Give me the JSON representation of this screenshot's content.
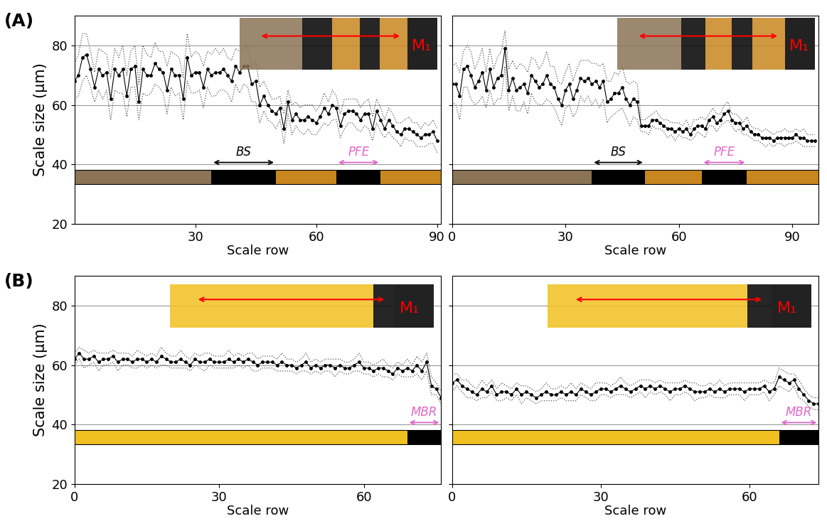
{
  "chart_data": [
    {
      "type": "line",
      "panel_label": "(A)",
      "inset_label": "M₁",
      "xlabel": "Scale row",
      "ylabel": "Scale size (µm)",
      "xlim": [
        0,
        91
      ],
      "xticks": [
        30,
        60,
        90
      ],
      "ylim": [
        20,
        90
      ],
      "yticks": [
        20,
        40,
        60,
        80
      ],
      "grid": true,
      "color": "#000000",
      "marker": "o",
      "line_style": "solid",
      "x": [
        0,
        1,
        2,
        3,
        4,
        5,
        6,
        7,
        8,
        9,
        10,
        11,
        12,
        13,
        14,
        15,
        16,
        17,
        18,
        19,
        20,
        21,
        22,
        23,
        24,
        25,
        26,
        27,
        28,
        29,
        30,
        31,
        32,
        33,
        34,
        35,
        36,
        37,
        38,
        39,
        40,
        41,
        42,
        43,
        44,
        45,
        46,
        47,
        48,
        49,
        50,
        51,
        52,
        53,
        54,
        55,
        56,
        57,
        58,
        59,
        60,
        61,
        62,
        63,
        64,
        65,
        66,
        67,
        68,
        69,
        70,
        71,
        72,
        73,
        74,
        75,
        76,
        77,
        78,
        79,
        80,
        81,
        82,
        83,
        84,
        85,
        86,
        87,
        88,
        89,
        90
      ],
      "values": [
        68,
        70,
        76,
        77,
        72,
        66,
        72,
        70,
        71,
        62,
        72,
        70,
        72,
        63,
        72,
        73,
        61,
        72,
        70,
        70,
        74,
        72,
        71,
        65,
        72,
        70,
        70,
        62,
        76,
        70,
        71,
        71,
        66,
        72,
        70,
        71,
        71,
        72,
        70,
        68,
        73,
        71,
        73,
        73,
        67,
        68,
        60,
        63,
        60,
        58,
        57,
        59,
        52,
        61,
        55,
        57,
        55,
        55,
        56,
        55,
        54,
        56,
        59,
        57,
        60,
        59,
        53,
        57,
        58,
        58,
        57,
        55,
        57,
        57,
        52,
        58,
        55,
        52,
        55,
        53,
        51,
        50,
        52,
        52,
        51,
        50,
        49,
        50,
        50,
        51,
        48
      ],
      "error": [
        6,
        7,
        8,
        7,
        6,
        5,
        7,
        8,
        6,
        7,
        7,
        6,
        8,
        7,
        6,
        7,
        6,
        8,
        7,
        6,
        7,
        6,
        7,
        8,
        6,
        7,
        6,
        7,
        8,
        6,
        7,
        6,
        7,
        6,
        7,
        8,
        6,
        7,
        6,
        7,
        6,
        7,
        6,
        7,
        6,
        7,
        6,
        5,
        5,
        4,
        5,
        4,
        5,
        4,
        5,
        4,
        4,
        5,
        4,
        5,
        4,
        4,
        5,
        4,
        5,
        4,
        4,
        5,
        4,
        4,
        5,
        4,
        4,
        5,
        4,
        4,
        4,
        3,
        4,
        4,
        3,
        4,
        3,
        4,
        3,
        4,
        3,
        4,
        3,
        4,
        4
      ],
      "bands": [
        {
          "start": 0,
          "end": 34,
          "color": "#8b7355"
        },
        {
          "start": 34,
          "end": 50,
          "color": "#000000"
        },
        {
          "start": 50,
          "end": 65,
          "color": "#c8861e"
        },
        {
          "start": 65,
          "end": 76,
          "color": "#000000"
        },
        {
          "start": 76,
          "end": 91,
          "color": "#c8861e"
        }
      ],
      "annotations": [
        {
          "text": "BS",
          "start": 34,
          "end": 50,
          "color": "#000000"
        },
        {
          "text": "PFE",
          "start": 65,
          "end": 76,
          "color": "#e066c8"
        }
      ]
    },
    {
      "type": "line",
      "inset_label": "M₁",
      "tick_labels": "x",
      "xlabel": "Scale row",
      "xlim": [
        0,
        97
      ],
      "xticks": [
        0,
        30,
        60,
        90
      ],
      "ylim": [
        20,
        90
      ],
      "yticks": [
        20,
        40,
        60,
        80
      ],
      "grid": true,
      "color": "#000000",
      "marker": "o",
      "line_style": "solid",
      "x": [
        0,
        1,
        2,
        3,
        4,
        5,
        6,
        7,
        8,
        9,
        10,
        11,
        12,
        13,
        14,
        15,
        16,
        17,
        18,
        19,
        20,
        21,
        22,
        23,
        24,
        25,
        26,
        27,
        28,
        29,
        30,
        31,
        32,
        33,
        34,
        35,
        36,
        37,
        38,
        39,
        40,
        41,
        42,
        43,
        44,
        45,
        46,
        47,
        48,
        49,
        50,
        51,
        52,
        53,
        54,
        55,
        56,
        57,
        58,
        59,
        60,
        61,
        62,
        63,
        64,
        65,
        66,
        67,
        68,
        69,
        70,
        71,
        72,
        73,
        74,
        75,
        76,
        77,
        78,
        79,
        80,
        81,
        82,
        83,
        84,
        85,
        86,
        87,
        88,
        89,
        90,
        91,
        92,
        93,
        94,
        95,
        96
      ],
      "values": [
        67,
        67,
        63,
        72,
        73,
        70,
        66,
        68,
        71,
        65,
        72,
        66,
        69,
        70,
        79,
        65,
        69,
        65,
        66,
        67,
        64,
        70,
        68,
        66,
        67,
        70,
        67,
        66,
        62,
        60,
        65,
        67,
        62,
        65,
        69,
        68,
        69,
        67,
        68,
        66,
        68,
        61,
        62,
        64,
        64,
        66,
        62,
        60,
        62,
        61,
        53,
        53,
        53,
        55,
        55,
        54,
        53,
        52,
        52,
        51,
        52,
        51,
        52,
        50,
        52,
        53,
        53,
        52,
        55,
        56,
        54,
        55,
        57,
        58,
        55,
        54,
        54,
        52,
        53,
        51,
        50,
        50,
        49,
        49,
        49,
        48,
        49,
        49,
        49,
        49,
        49,
        50,
        49,
        49,
        48,
        48,
        48
      ],
      "error": [
        6,
        7,
        8,
        6,
        7,
        8,
        6,
        7,
        8,
        6,
        7,
        6,
        7,
        8,
        6,
        7,
        6,
        7,
        8,
        6,
        7,
        6,
        7,
        6,
        7,
        8,
        6,
        7,
        6,
        7,
        6,
        7,
        6,
        7,
        6,
        7,
        6,
        7,
        6,
        7,
        6,
        7,
        6,
        7,
        6,
        7,
        6,
        7,
        6,
        6,
        2,
        2,
        3,
        2,
        3,
        2,
        2,
        3,
        2,
        3,
        2,
        2,
        3,
        2,
        3,
        2,
        3,
        3,
        2,
        3,
        3,
        2,
        3,
        3,
        2,
        3,
        2,
        2,
        3,
        2,
        2,
        2,
        2,
        3,
        2,
        2,
        2,
        2,
        3,
        2,
        2,
        2,
        2,
        3,
        2,
        2,
        2
      ],
      "bands": [
        {
          "start": 0,
          "end": 37,
          "color": "#8b7355"
        },
        {
          "start": 37,
          "end": 51,
          "color": "#000000"
        },
        {
          "start": 51,
          "end": 66,
          "color": "#c8861e"
        },
        {
          "start": 66,
          "end": 78,
          "color": "#000000"
        },
        {
          "start": 78,
          "end": 97,
          "color": "#c8861e"
        }
      ],
      "annotations": [
        {
          "text": "BS",
          "start": 37,
          "end": 51,
          "color": "#000000"
        },
        {
          "text": "PFE",
          "start": 66,
          "end": 78,
          "color": "#e066c8"
        }
      ]
    },
    {
      "type": "line",
      "panel_label": "(B)",
      "inset_label": "M₁",
      "xlabel": "Scale row",
      "ylabel": "Scale size (µm)",
      "xlim": [
        0,
        76
      ],
      "xticks": [
        0,
        30,
        60
      ],
      "ylim": [
        20,
        90
      ],
      "yticks": [
        20,
        40,
        60,
        80
      ],
      "grid": true,
      "color": "#000000",
      "marker": "o",
      "line_style": "solid",
      "x": [
        0,
        1,
        2,
        3,
        4,
        5,
        6,
        7,
        8,
        9,
        10,
        11,
        12,
        13,
        14,
        15,
        16,
        17,
        18,
        19,
        20,
        21,
        22,
        23,
        24,
        25,
        26,
        27,
        28,
        29,
        30,
        31,
        32,
        33,
        34,
        35,
        36,
        37,
        38,
        39,
        40,
        41,
        42,
        43,
        44,
        45,
        46,
        47,
        48,
        49,
        50,
        51,
        52,
        53,
        54,
        55,
        56,
        57,
        58,
        59,
        60,
        61,
        62,
        63,
        64,
        65,
        66,
        67,
        68,
        69,
        70,
        71,
        72,
        73,
        74,
        75,
        76
      ],
      "values": [
        62,
        64,
        62,
        62,
        63,
        61,
        62,
        62,
        63,
        61,
        62,
        62,
        61,
        62,
        62,
        61,
        62,
        61,
        63,
        62,
        61,
        61,
        62,
        61,
        60,
        62,
        61,
        61,
        62,
        61,
        61,
        61,
        62,
        61,
        62,
        61,
        62,
        61,
        60,
        61,
        61,
        61,
        60,
        61,
        60,
        60,
        59,
        60,
        61,
        59,
        60,
        59,
        60,
        60,
        59,
        60,
        59,
        59,
        60,
        61,
        59,
        59,
        58,
        59,
        59,
        58,
        57,
        59,
        58,
        59,
        58,
        60,
        58,
        61,
        53,
        52,
        49
      ],
      "error": [
        2,
        2,
        3,
        2,
        2,
        3,
        2,
        2,
        2,
        3,
        2,
        2,
        2,
        3,
        2,
        2,
        2,
        2,
        3,
        2,
        2,
        2,
        3,
        2,
        2,
        2,
        2,
        3,
        2,
        2,
        2,
        2,
        3,
        2,
        2,
        2,
        2,
        3,
        2,
        2,
        2,
        2,
        2,
        3,
        2,
        2,
        2,
        2,
        3,
        2,
        2,
        2,
        2,
        2,
        3,
        2,
        2,
        2,
        2,
        3,
        2,
        2,
        2,
        2,
        3,
        2,
        2,
        2,
        2,
        3,
        2,
        3,
        3,
        3,
        3,
        2,
        2
      ],
      "bands": [
        {
          "start": 0,
          "end": 69,
          "color": "#f0c020"
        },
        {
          "start": 69,
          "end": 76,
          "color": "#000000"
        }
      ],
      "annotations": [
        {
          "text": "MBR",
          "start": 69,
          "end": 76,
          "color": "#e066c8"
        }
      ]
    },
    {
      "type": "line",
      "inset_label": "M₁",
      "tick_labels": "x",
      "xlabel": "Scale row",
      "xlim": [
        0,
        74
      ],
      "xticks": [
        0,
        30,
        60
      ],
      "ylim": [
        20,
        90
      ],
      "yticks": [
        20,
        40,
        60,
        80
      ],
      "grid": true,
      "color": "#000000",
      "marker": "o",
      "line_style": "solid",
      "x": [
        0,
        1,
        2,
        3,
        4,
        5,
        6,
        7,
        8,
        9,
        10,
        11,
        12,
        13,
        14,
        15,
        16,
        17,
        18,
        19,
        20,
        21,
        22,
        23,
        24,
        25,
        26,
        27,
        28,
        29,
        30,
        31,
        32,
        33,
        34,
        35,
        36,
        37,
        38,
        39,
        40,
        41,
        42,
        43,
        44,
        45,
        46,
        47,
        48,
        49,
        50,
        51,
        52,
        53,
        54,
        55,
        56,
        57,
        58,
        59,
        60,
        61,
        62,
        63,
        64,
        65,
        66,
        67,
        68,
        69,
        70,
        71,
        72,
        73,
        74
      ],
      "values": [
        54,
        55,
        53,
        52,
        51,
        50,
        52,
        51,
        53,
        50,
        51,
        51,
        50,
        52,
        50,
        51,
        50,
        49,
        50,
        51,
        50,
        50,
        51,
        50,
        51,
        50,
        52,
        51,
        50,
        51,
        52,
        52,
        51,
        52,
        53,
        52,
        51,
        52,
        53,
        52,
        53,
        52,
        53,
        52,
        51,
        52,
        52,
        53,
        52,
        51,
        51,
        51,
        52,
        51,
        52,
        51,
        52,
        52,
        52,
        51,
        52,
        52,
        52,
        53,
        51,
        52,
        56,
        55,
        54,
        55,
        52,
        50,
        48,
        47,
        47
      ],
      "error": [
        3,
        2,
        2,
        3,
        2,
        2,
        3,
        2,
        2,
        2,
        3,
        2,
        2,
        2,
        3,
        2,
        2,
        2,
        2,
        3,
        2,
        2,
        2,
        2,
        3,
        2,
        2,
        2,
        2,
        3,
        2,
        2,
        2,
        2,
        3,
        2,
        2,
        2,
        2,
        3,
        2,
        2,
        2,
        2,
        3,
        2,
        2,
        2,
        2,
        3,
        2,
        2,
        2,
        2,
        3,
        2,
        2,
        2,
        2,
        3,
        2,
        2,
        2,
        2,
        3,
        2,
        3,
        3,
        3,
        2,
        3,
        2,
        2,
        2,
        2
      ],
      "bands": [
        {
          "start": 0,
          "end": 66,
          "color": "#f0c020"
        },
        {
          "start": 66,
          "end": 74,
          "color": "#000000"
        }
      ],
      "annotations": [
        {
          "text": "MBR",
          "start": 66,
          "end": 74,
          "color": "#e066c8"
        }
      ]
    }
  ]
}
